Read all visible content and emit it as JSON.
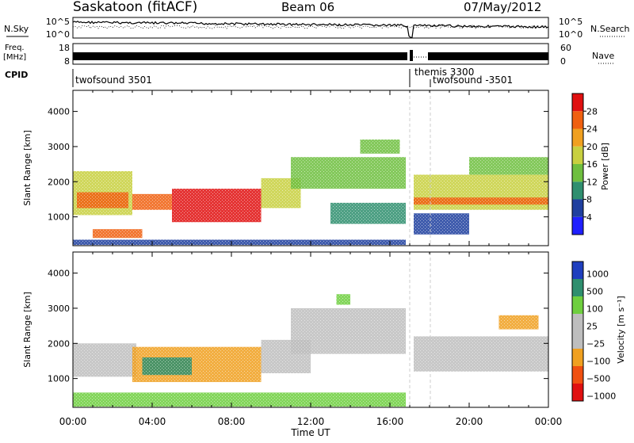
{
  "header": {
    "station": "Saskatoon (fitACF)",
    "beam": "Beam 06",
    "date": "07/May/2012"
  },
  "noise_panel": {
    "left_label": "N.Sky",
    "right_label": "N.Search",
    "left_ticks": [
      "10^5",
      "10^0"
    ],
    "right_ticks": [
      "10^5",
      "10^0"
    ]
  },
  "freq_panel": {
    "left_label_1": "Freq.",
    "left_label_2": "[MHz]",
    "right_label": "Nave",
    "left_ticks": [
      "18",
      "8"
    ],
    "right_ticks": [
      "60",
      "0"
    ]
  },
  "cpid_panel": {
    "label": "CPID",
    "segments": [
      {
        "name": "twofsound 3501",
        "start_hour": 0
      },
      {
        "name": "themis 3300",
        "start_hour": 17.0
      },
      {
        "name": "twofsound -3501",
        "start_hour": 18.1
      }
    ]
  },
  "colors": {
    "power": [
      "#1f1fff",
      "#1f3f9f",
      "#2f8f6f",
      "#6fbf3f",
      "#c8d040",
      "#f0a020",
      "#f06010",
      "#e01010"
    ],
    "velocity": [
      "#e01010",
      "#f05010",
      "#f0a020",
      "#bebebe",
      "#bebebe",
      "#6fcf3f",
      "#2f8f6f",
      "#1f3fbf"
    ]
  },
  "chart_data": [
    {
      "type": "heatmap",
      "name": "power",
      "ylabel": "Slant Range [km]",
      "x_range_hours": [
        0,
        24
      ],
      "ylim": [
        180,
        4600
      ],
      "yticks": [
        "1000",
        "2000",
        "3000",
        "4000"
      ],
      "x_tick_labels": [
        "00:00",
        "04:00",
        "08:00",
        "12:00",
        "16:00",
        "20:00",
        "00:00"
      ],
      "colorbar": {
        "label": "Power [dB]",
        "ticks": [
          "4",
          "8",
          "12",
          "16",
          "20",
          "24",
          "28"
        ]
      },
      "regions": [
        {
          "x0": 0.0,
          "x1": 3.0,
          "y0": 1050,
          "y1": 2300,
          "level": 4
        },
        {
          "x0": 0.2,
          "x1": 2.8,
          "y0": 1250,
          "y1": 1700,
          "level": 6
        },
        {
          "x0": 3.0,
          "x1": 5.0,
          "y0": 1200,
          "y1": 1650,
          "level": 6
        },
        {
          "x0": 5.0,
          "x1": 9.5,
          "y0": 850,
          "y1": 1800,
          "level": 7
        },
        {
          "x0": 9.5,
          "x1": 11.5,
          "y0": 1250,
          "y1": 2100,
          "level": 4
        },
        {
          "x0": 11.0,
          "x1": 16.8,
          "y0": 1800,
          "y1": 2700,
          "level": 3
        },
        {
          "x0": 13.0,
          "x1": 16.8,
          "y0": 800,
          "y1": 1400,
          "level": 2
        },
        {
          "x0": 1.0,
          "x1": 3.5,
          "y0": 400,
          "y1": 650,
          "level": 6
        },
        {
          "x0": 0.0,
          "x1": 16.8,
          "y0": 200,
          "y1": 350,
          "level": 1
        },
        {
          "x0": 17.2,
          "x1": 24.0,
          "y0": 1200,
          "y1": 2200,
          "level": 4
        },
        {
          "x0": 17.2,
          "x1": 24.0,
          "y0": 1350,
          "y1": 1550,
          "level": 6
        },
        {
          "x0": 17.2,
          "x1": 20.0,
          "y0": 500,
          "y1": 1100,
          "level": 1
        },
        {
          "x0": 20.0,
          "x1": 24.0,
          "y0": 2200,
          "y1": 2700,
          "level": 3
        },
        {
          "x0": 14.5,
          "x1": 16.5,
          "y0": 2800,
          "y1": 3200,
          "level": 3
        }
      ]
    },
    {
      "type": "heatmap",
      "name": "velocity",
      "ylabel": "Slant Range [km]",
      "xlabel": "Time UT",
      "x_range_hours": [
        0,
        24
      ],
      "ylim": [
        180,
        4600
      ],
      "yticks": [
        "1000",
        "2000",
        "3000",
        "4000"
      ],
      "x_tick_labels": [
        "00:00",
        "04:00",
        "08:00",
        "12:00",
        "16:00",
        "20:00",
        "00:00"
      ],
      "colorbar": {
        "label": "Velocity [m s⁻¹]",
        "ticks": [
          "1000",
          "500",
          "100",
          "25",
          "−25",
          "−100",
          "−500",
          "−1000"
        ]
      },
      "regions": [
        {
          "x0": 0.0,
          "x1": 3.2,
          "y0": 1050,
          "y1": 2000,
          "level": 3
        },
        {
          "x0": 3.0,
          "x1": 9.5,
          "y0": 900,
          "y1": 1900,
          "level": 2
        },
        {
          "x0": 3.5,
          "x1": 6.0,
          "y0": 1100,
          "y1": 1600,
          "level": 6
        },
        {
          "x0": 9.5,
          "x1": 12.0,
          "y0": 1150,
          "y1": 2100,
          "level": 3
        },
        {
          "x0": 11.0,
          "x1": 16.8,
          "y0": 1700,
          "y1": 3000,
          "level": 3
        },
        {
          "x0": 17.2,
          "x1": 24.0,
          "y0": 1200,
          "y1": 2200,
          "level": 3
        },
        {
          "x0": 0.0,
          "x1": 16.8,
          "y0": 200,
          "y1": 600,
          "level": 5
        },
        {
          "x0": 21.5,
          "x1": 23.5,
          "y0": 2400,
          "y1": 2800,
          "level": 2
        },
        {
          "x0": 13.3,
          "x1": 14.0,
          "y0": 3100,
          "y1": 3400,
          "level": 5
        }
      ]
    }
  ]
}
